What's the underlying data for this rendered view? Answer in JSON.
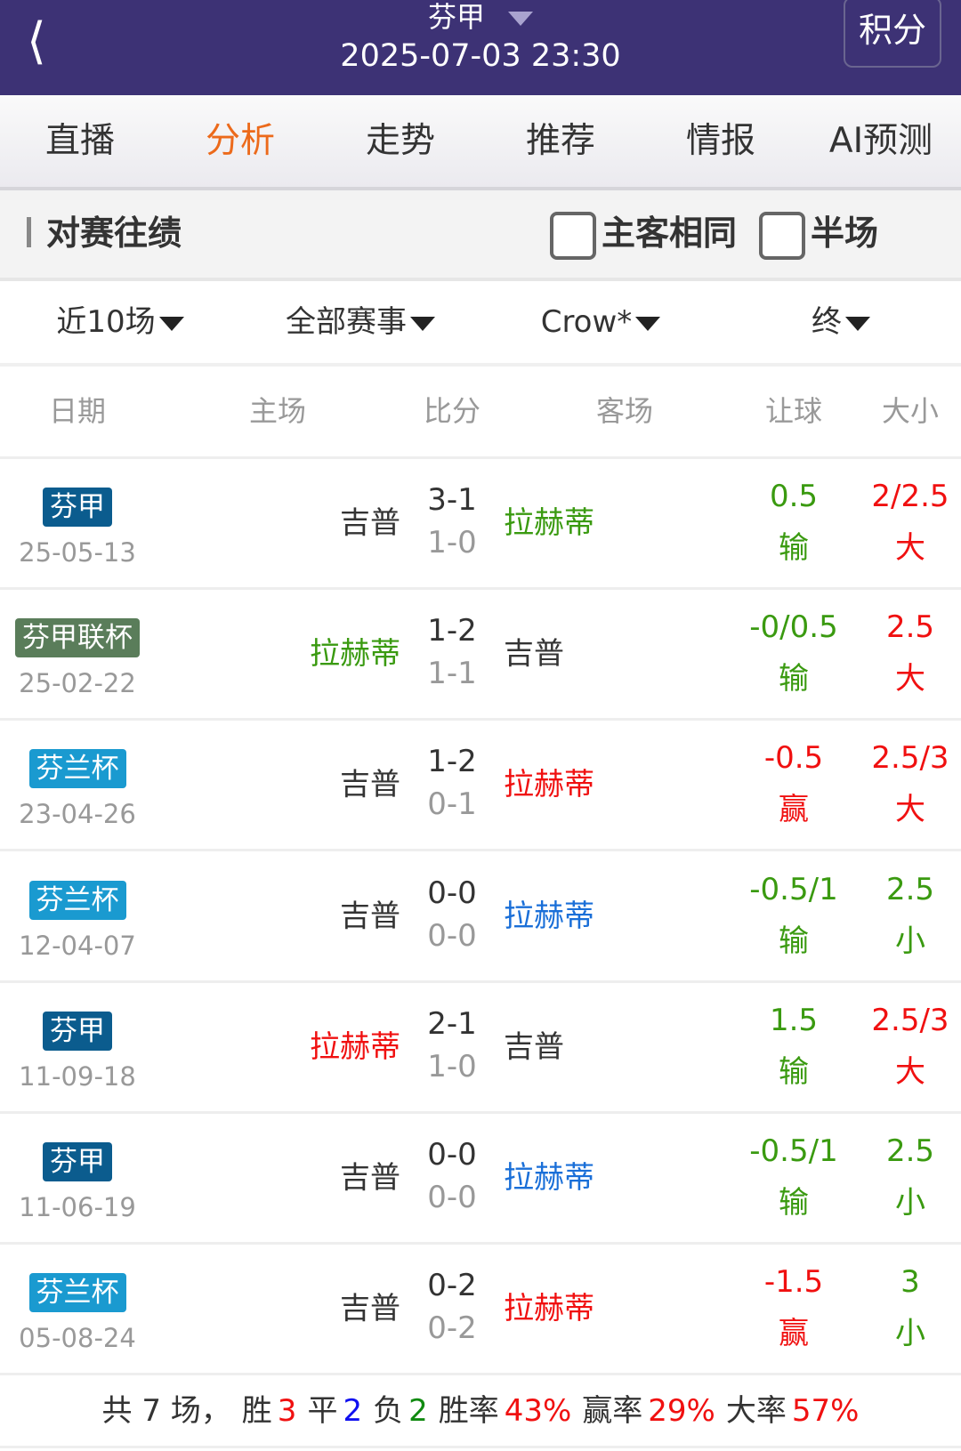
{
  "header": {
    "league": "芬甲",
    "datetime": "2025-07-03 23:30",
    "standings_button": "积分"
  },
  "tabs": [
    {
      "label": "直播",
      "active": false
    },
    {
      "label": "分析",
      "active": true
    },
    {
      "label": "走势",
      "active": false
    },
    {
      "label": "推荐",
      "active": false
    },
    {
      "label": "情报",
      "active": false
    },
    {
      "label": "AI预测",
      "active": false
    }
  ],
  "section": {
    "title": "对赛往绩",
    "same_venue_label": "主客相同",
    "same_venue_checked": false,
    "half_label": "半场",
    "half_checked": false
  },
  "filters": [
    "近10场",
    "全部赛事",
    "Crow*",
    "终"
  ],
  "columns": [
    "日期",
    "主场",
    "比分",
    "客场",
    "让球",
    "大小"
  ],
  "colors": {
    "header": "#3d3275",
    "accent": "#ec6a1b",
    "red": "#f01010",
    "green": "#3a9a10",
    "blue": "#1a6fd8"
  },
  "matches": [
    {
      "comp": "芬甲",
      "comp_color": "#0b5c8e",
      "date": "25-05-13",
      "home": "吉普",
      "home_color": "#333333",
      "away": "拉赫蒂",
      "away_color": "#3a9a10",
      "ft": "3-1",
      "ht": "1-0",
      "hc": "0.5",
      "hc_res": "输",
      "hc_color": "#3a9a10",
      "ou": "2/2.5",
      "ou_res": "大",
      "ou_color": "#f01010"
    },
    {
      "comp": "芬甲联杯",
      "comp_color": "#5a7d5a",
      "date": "25-02-22",
      "home": "拉赫蒂",
      "home_color": "#3a9a10",
      "away": "吉普",
      "away_color": "#333333",
      "ft": "1-2",
      "ht": "1-1",
      "hc": "-0/0.5",
      "hc_res": "输",
      "hc_color": "#3a9a10",
      "ou": "2.5",
      "ou_res": "大",
      "ou_color": "#f01010"
    },
    {
      "comp": "芬兰杯",
      "comp_color": "#1a9ad0",
      "date": "23-04-26",
      "home": "吉普",
      "home_color": "#333333",
      "away": "拉赫蒂",
      "away_color": "#f01010",
      "ft": "1-2",
      "ht": "0-1",
      "hc": "-0.5",
      "hc_res": "赢",
      "hc_color": "#f01010",
      "ou": "2.5/3",
      "ou_res": "大",
      "ou_color": "#f01010"
    },
    {
      "comp": "芬兰杯",
      "comp_color": "#1a9ad0",
      "date": "12-04-07",
      "home": "吉普",
      "home_color": "#333333",
      "away": "拉赫蒂",
      "away_color": "#1a6fd8",
      "ft": "0-0",
      "ht": "0-0",
      "hc": "-0.5/1",
      "hc_res": "输",
      "hc_color": "#3a9a10",
      "ou": "2.5",
      "ou_res": "小",
      "ou_color": "#3a9a10"
    },
    {
      "comp": "芬甲",
      "comp_color": "#0b5c8e",
      "date": "11-09-18",
      "home": "拉赫蒂",
      "home_color": "#f01010",
      "away": "吉普",
      "away_color": "#333333",
      "ft": "2-1",
      "ht": "1-0",
      "hc": "1.5",
      "hc_res": "输",
      "hc_color": "#3a9a10",
      "ou": "2.5/3",
      "ou_res": "大",
      "ou_color": "#f01010"
    },
    {
      "comp": "芬甲",
      "comp_color": "#0b5c8e",
      "date": "11-06-19",
      "home": "吉普",
      "home_color": "#333333",
      "away": "拉赫蒂",
      "away_color": "#1a6fd8",
      "ft": "0-0",
      "ht": "0-0",
      "hc": "-0.5/1",
      "hc_res": "输",
      "hc_color": "#3a9a10",
      "ou": "2.5",
      "ou_res": "小",
      "ou_color": "#3a9a10"
    },
    {
      "comp": "芬兰杯",
      "comp_color": "#1a9ad0",
      "date": "05-08-24",
      "home": "吉普",
      "home_color": "#333333",
      "away": "拉赫蒂",
      "away_color": "#f01010",
      "ft": "0-2",
      "ht": "0-2",
      "hc": "-1.5",
      "hc_res": "赢",
      "hc_color": "#f01010",
      "ou": "3",
      "ou_res": "小",
      "ou_color": "#3a9a10"
    }
  ],
  "summary": {
    "total_prefix": "共 7 场，",
    "win_label": "胜",
    "wins": "3",
    "draw_label": "平",
    "draws": "2",
    "loss_label": "负",
    "losses": "2",
    "win_rate_label": "胜率",
    "win_rate": "43%",
    "hc_rate_label": "赢率",
    "hc_rate": "29%",
    "over_rate_label": "大率",
    "over_rate": "57%"
  }
}
